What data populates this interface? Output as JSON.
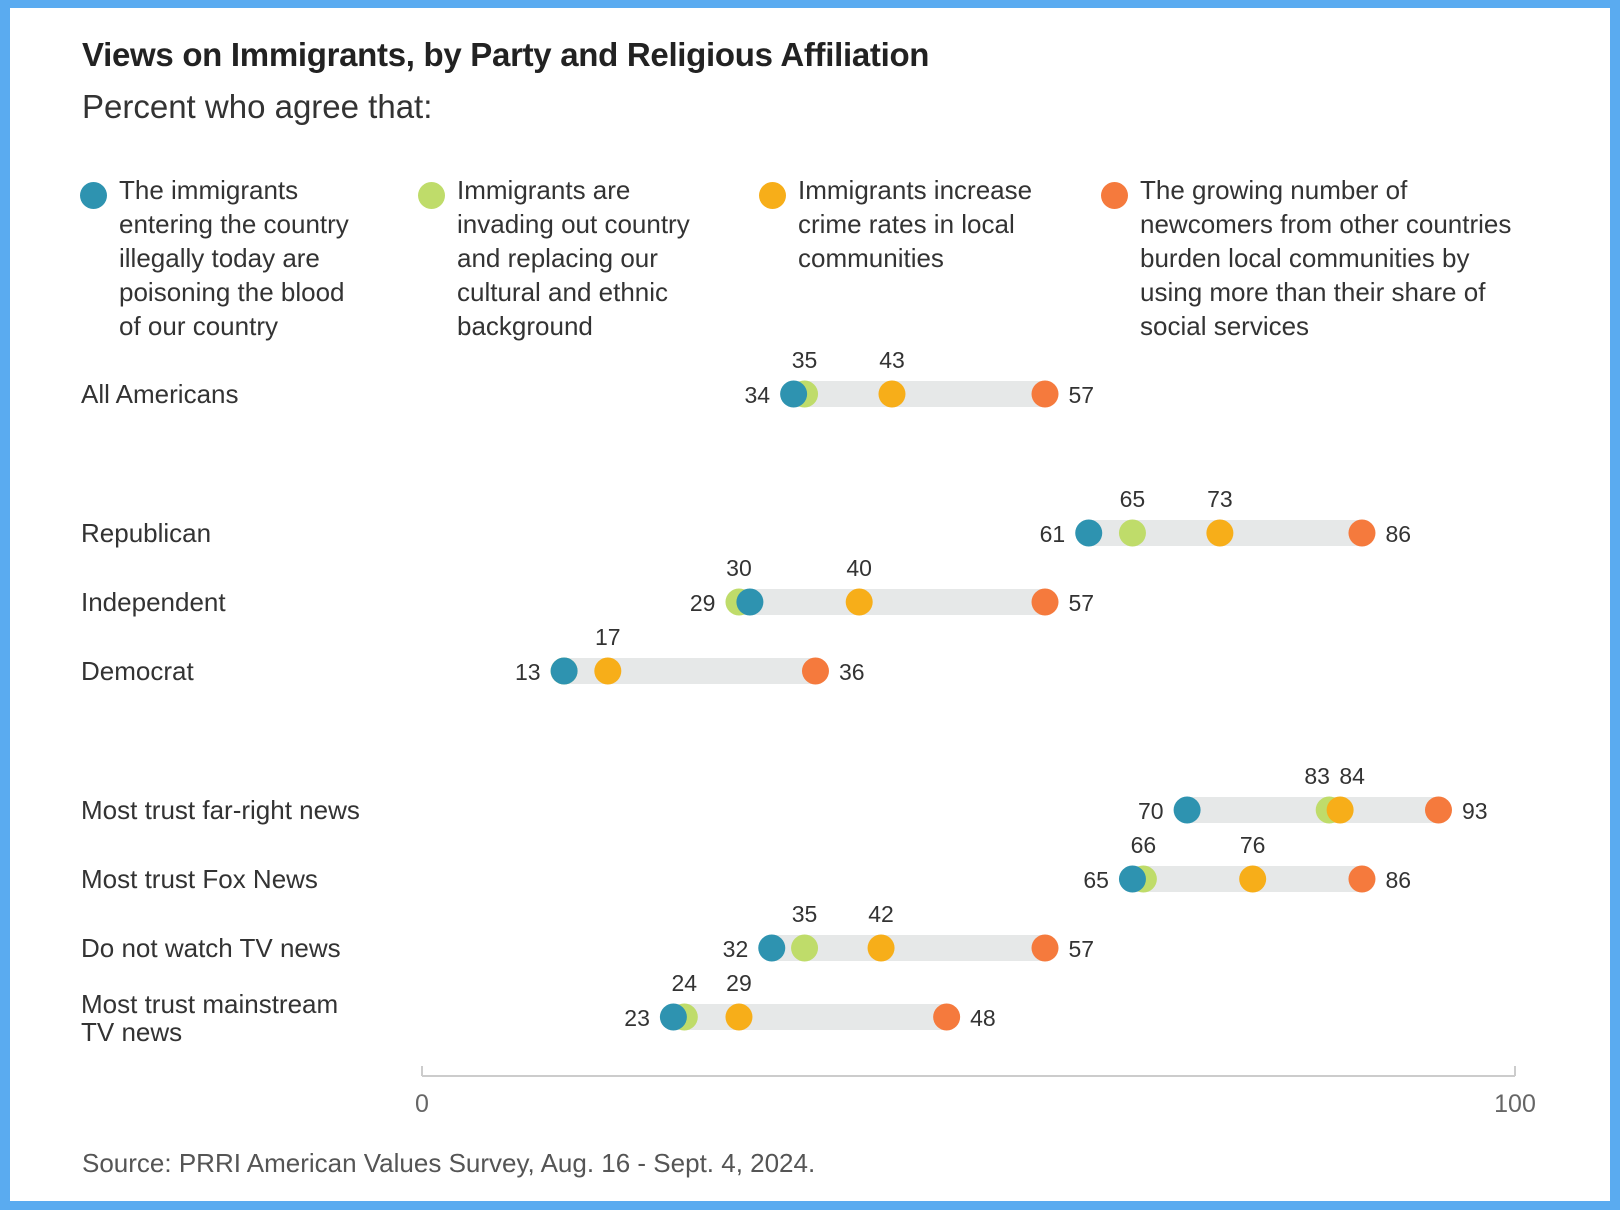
{
  "header": {
    "title": "Views on Immigrants, by Party and Religious Affiliation",
    "subtitle": "Percent who agree that:"
  },
  "legend": [
    {
      "label_lines": [
        "The immigrants",
        "entering the country",
        "illegally today are",
        "poisoning the blood",
        "of our country"
      ],
      "color": "#2e93b0"
    },
    {
      "label_lines": [
        "Immigrants are",
        "invading out country",
        "and replacing our",
        "cultural and ethnic",
        "background"
      ],
      "color": "#bfdc6a"
    },
    {
      "label_lines": [
        "Immigrants increase",
        "crime rates in local",
        "communities"
      ],
      "color": "#f7ae19"
    },
    {
      "label_lines": [
        "The growing number of",
        "newcomers from other countries",
        "burden local communities by",
        "using more than their share of",
        "social services"
      ],
      "color": "#f57a3d"
    }
  ],
  "chart_data": {
    "type": "dot_range",
    "xlim": [
      0,
      100
    ],
    "x_ticks": [
      "0",
      "100"
    ],
    "series": [
      {
        "key": "poison",
        "color": "#2e93b0"
      },
      {
        "key": "invade",
        "color": "#bfdc6a"
      },
      {
        "key": "crime",
        "color": "#f7ae19"
      },
      {
        "key": "burden",
        "color": "#f57a3d"
      }
    ],
    "rows": [
      {
        "label": [
          "All Americans"
        ],
        "group": 0,
        "values": {
          "poison": 34,
          "invade": 35,
          "crime": 43,
          "burden": 57
        }
      },
      {
        "label": [
          "Republican"
        ],
        "group": 1,
        "values": {
          "poison": 61,
          "invade": 65,
          "crime": 73,
          "burden": 86
        }
      },
      {
        "label": [
          "Independent"
        ],
        "group": 1,
        "values": {
          "poison": 30,
          "invade": 29,
          "crime": 40,
          "burden": 57
        }
      },
      {
        "label": [
          "Democrat"
        ],
        "group": 1,
        "values": {
          "poison": 13,
          "invade": 13,
          "crime": 17,
          "burden": 36
        }
      },
      {
        "label": [
          "Most trust far-right news"
        ],
        "group": 2,
        "values": {
          "poison": 70,
          "invade": 83,
          "crime": 84,
          "burden": 93
        }
      },
      {
        "label": [
          "Most trust Fox News"
        ],
        "group": 2,
        "values": {
          "poison": 65,
          "invade": 66,
          "crime": 76,
          "burden": 86
        }
      },
      {
        "label": [
          "Do not watch TV news"
        ],
        "group": 2,
        "values": {
          "poison": 32,
          "invade": 35,
          "crime": 42,
          "burden": 57
        }
      },
      {
        "label": [
          "Most trust mainstream",
          "TV news"
        ],
        "group": 2,
        "values": {
          "poison": 23,
          "invade": 24,
          "crime": 29,
          "burden": 48
        }
      }
    ],
    "value_labels": [
      {
        "row": 0,
        "left": "34",
        "right": "57",
        "above": [
          "35",
          "43"
        ]
      },
      {
        "row": 1,
        "left": "61",
        "right": "86",
        "above": [
          "65",
          "73"
        ]
      },
      {
        "row": 2,
        "left": "29",
        "right": "57",
        "above": [
          "30",
          "40"
        ]
      },
      {
        "row": 3,
        "left": "13",
        "right": "36",
        "above": [
          "17"
        ]
      },
      {
        "row": 4,
        "left": "70",
        "right": "93",
        "above": [
          "83",
          "84"
        ]
      },
      {
        "row": 5,
        "left": "65",
        "right": "86",
        "above": [
          "66",
          "76"
        ]
      },
      {
        "row": 6,
        "left": "32",
        "right": "57",
        "above": [
          "35",
          "42"
        ]
      },
      {
        "row": 7,
        "left": "23",
        "right": "48",
        "above": [
          "24",
          "29"
        ]
      }
    ]
  },
  "footer": {
    "source": "Source: PRRI American Values Survey, Aug. 16 - Sept. 4, 2024."
  }
}
